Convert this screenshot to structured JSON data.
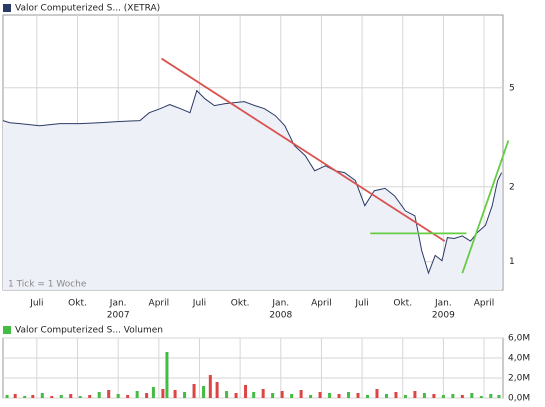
{
  "chart_data": [
    {
      "type": "line",
      "log": true,
      "xlim": [
        -2.5,
        34.4
      ],
      "ylim": [
        0.77,
        9.8
      ],
      "yticks": [
        1,
        2,
        5
      ],
      "xticks": [
        {
          "value": 0,
          "label": "Juli"
        },
        {
          "value": 3,
          "label": "Okt."
        },
        {
          "value": 6,
          "label": "Jan."
        },
        {
          "value": 9,
          "label": "April"
        },
        {
          "value": 12,
          "label": "Juli"
        },
        {
          "value": 15,
          "label": "Okt."
        },
        {
          "value": 18,
          "label": "Jan."
        },
        {
          "value": 21,
          "label": "April"
        },
        {
          "value": 24,
          "label": "Juli"
        },
        {
          "value": 27,
          "label": "Okt."
        },
        {
          "value": 30,
          "label": "Jan."
        },
        {
          "value": 33,
          "label": "April"
        }
      ],
      "xyears": [
        {
          "value": 6,
          "label": "2007"
        },
        {
          "value": 18,
          "label": "2008"
        },
        {
          "value": 30,
          "label": "2009"
        }
      ],
      "annotation": "1 Tick = 1 Woche",
      "grid": true,
      "x": [
        -2.5,
        -2.0,
        -1.25,
        0.2,
        1.7,
        3.2,
        4.6,
        6.1,
        7.6,
        8.3,
        9.1,
        9.8,
        10.6,
        11.3,
        11.8,
        12.4,
        13.1,
        13.9,
        14.6,
        15.3,
        16.1,
        16.8,
        17.6,
        18.3,
        19.0,
        19.8,
        20.5,
        21.3,
        22.0,
        22.7,
        23.5,
        24.2,
        24.9,
        25.7,
        26.4,
        27.2,
        27.9,
        28.4,
        28.9,
        29.4,
        29.9,
        30.3,
        30.8,
        31.4,
        32.0,
        32.5,
        33.1,
        33.6,
        34.0,
        34.3
      ],
      "series": [
        {
          "name": "Valor Computerized S... (XETRA)",
          "color": "#2b3a67",
          "fill": "#eef0f8",
          "values": [
            3.69,
            3.62,
            3.59,
            3.52,
            3.59,
            3.59,
            3.62,
            3.66,
            3.69,
            3.97,
            4.12,
            4.28,
            4.12,
            3.97,
            4.87,
            4.52,
            4.24,
            4.32,
            4.36,
            4.4,
            4.24,
            4.12,
            3.86,
            3.52,
            2.93,
            2.67,
            2.32,
            2.43,
            2.32,
            2.28,
            2.12,
            1.68,
            1.93,
            1.97,
            1.84,
            1.6,
            1.53,
            1.11,
            0.9,
            1.06,
            1.01,
            1.25,
            1.24,
            1.27,
            1.21,
            1.31,
            1.4,
            1.68,
            2.12,
            2.28
          ]
        }
      ],
      "trendlines": [
        {
          "color": "#d9534f",
          "x": [
            9.2,
            30.1
          ],
          "y": [
            6.55,
            1.21
          ]
        },
        {
          "color": "#66cc44",
          "x": [
            24.6,
            31.7
          ],
          "y": [
            1.3,
            1.3
          ]
        },
        {
          "color": "#66cc44",
          "x": [
            31.4,
            34.8
          ],
          "y": [
            0.9,
            3.07
          ]
        }
      ]
    },
    {
      "type": "bar",
      "xlim": [
        -2.5,
        34.4
      ],
      "ylim": [
        0,
        6000000
      ],
      "yticks": [
        {
          "value": 0,
          "label": "0,0M"
        },
        {
          "value": 2000000,
          "label": "2,0M"
        },
        {
          "value": 4000000,
          "label": "4,0M"
        },
        {
          "value": 6000000,
          "label": "6,0M"
        }
      ],
      "series": [
        {
          "name": "Valor Computerized S... Volumen",
          "color": "#44bb44",
          "x": [
            -2.2,
            -1.6,
            -0.9,
            -0.3,
            0.4,
            1.1,
            1.8,
            2.5,
            3.2,
            3.9,
            4.6,
            5.3,
            6.0,
            6.7,
            7.4,
            8.1,
            8.6,
            9.3,
            9.6,
            10.2,
            10.9,
            11.6,
            12.3,
            12.8,
            13.3,
            14.0,
            14.7,
            15.4,
            16.0,
            16.7,
            17.4,
            18.1,
            18.8,
            19.5,
            20.2,
            20.9,
            21.6,
            22.3,
            23.0,
            23.7,
            24.4,
            25.1,
            25.8,
            26.5,
            27.2,
            27.9,
            28.6,
            29.3,
            30.0,
            30.7,
            31.4,
            32.1,
            32.8,
            33.5,
            34.1
          ],
          "values": [
            300000,
            400000,
            200000,
            300000,
            500000,
            200000,
            300000,
            400000,
            200000,
            300000,
            600000,
            800000,
            400000,
            300000,
            700000,
            500000,
            1100000,
            900000,
            4600000,
            800000,
            600000,
            1400000,
            1200000,
            2300000,
            1600000,
            700000,
            500000,
            1300000,
            600000,
            900000,
            500000,
            700000,
            400000,
            800000,
            300000,
            600000,
            500000,
            400000,
            600000,
            500000,
            300000,
            900000,
            400000,
            600000,
            300000,
            700000,
            500000,
            400000,
            300000,
            400000,
            300000,
            500000,
            200000,
            400000,
            300000
          ],
          "colors": [
            "#44bb44",
            "#dd4444",
            "#44bb44",
            "#dd4444",
            "#44bb44",
            "#dd4444",
            "#44bb44",
            "#dd4444",
            "#44bb44",
            "#dd4444",
            "#44bb44",
            "#dd4444",
            "#44bb44",
            "#dd4444",
            "#44bb44",
            "#dd4444",
            "#44bb44",
            "#dd4444",
            "#44bb44",
            "#dd4444",
            "#44bb44",
            "#dd4444",
            "#44bb44",
            "#dd4444",
            "#dd4444",
            "#44bb44",
            "#dd4444",
            "#dd4444",
            "#44bb44",
            "#dd4444",
            "#44bb44",
            "#dd4444",
            "#44bb44",
            "#dd4444",
            "#44bb44",
            "#dd4444",
            "#44bb44",
            "#dd4444",
            "#44bb44",
            "#dd4444",
            "#44bb44",
            "#dd4444",
            "#44bb44",
            "#dd4444",
            "#44bb44",
            "#dd4444",
            "#44bb44",
            "#dd4444",
            "#44bb44",
            "#44bb44",
            "#dd4444",
            "#44bb44",
            "#44bb44",
            "#44bb44",
            "#44bb44"
          ]
        }
      ]
    }
  ]
}
